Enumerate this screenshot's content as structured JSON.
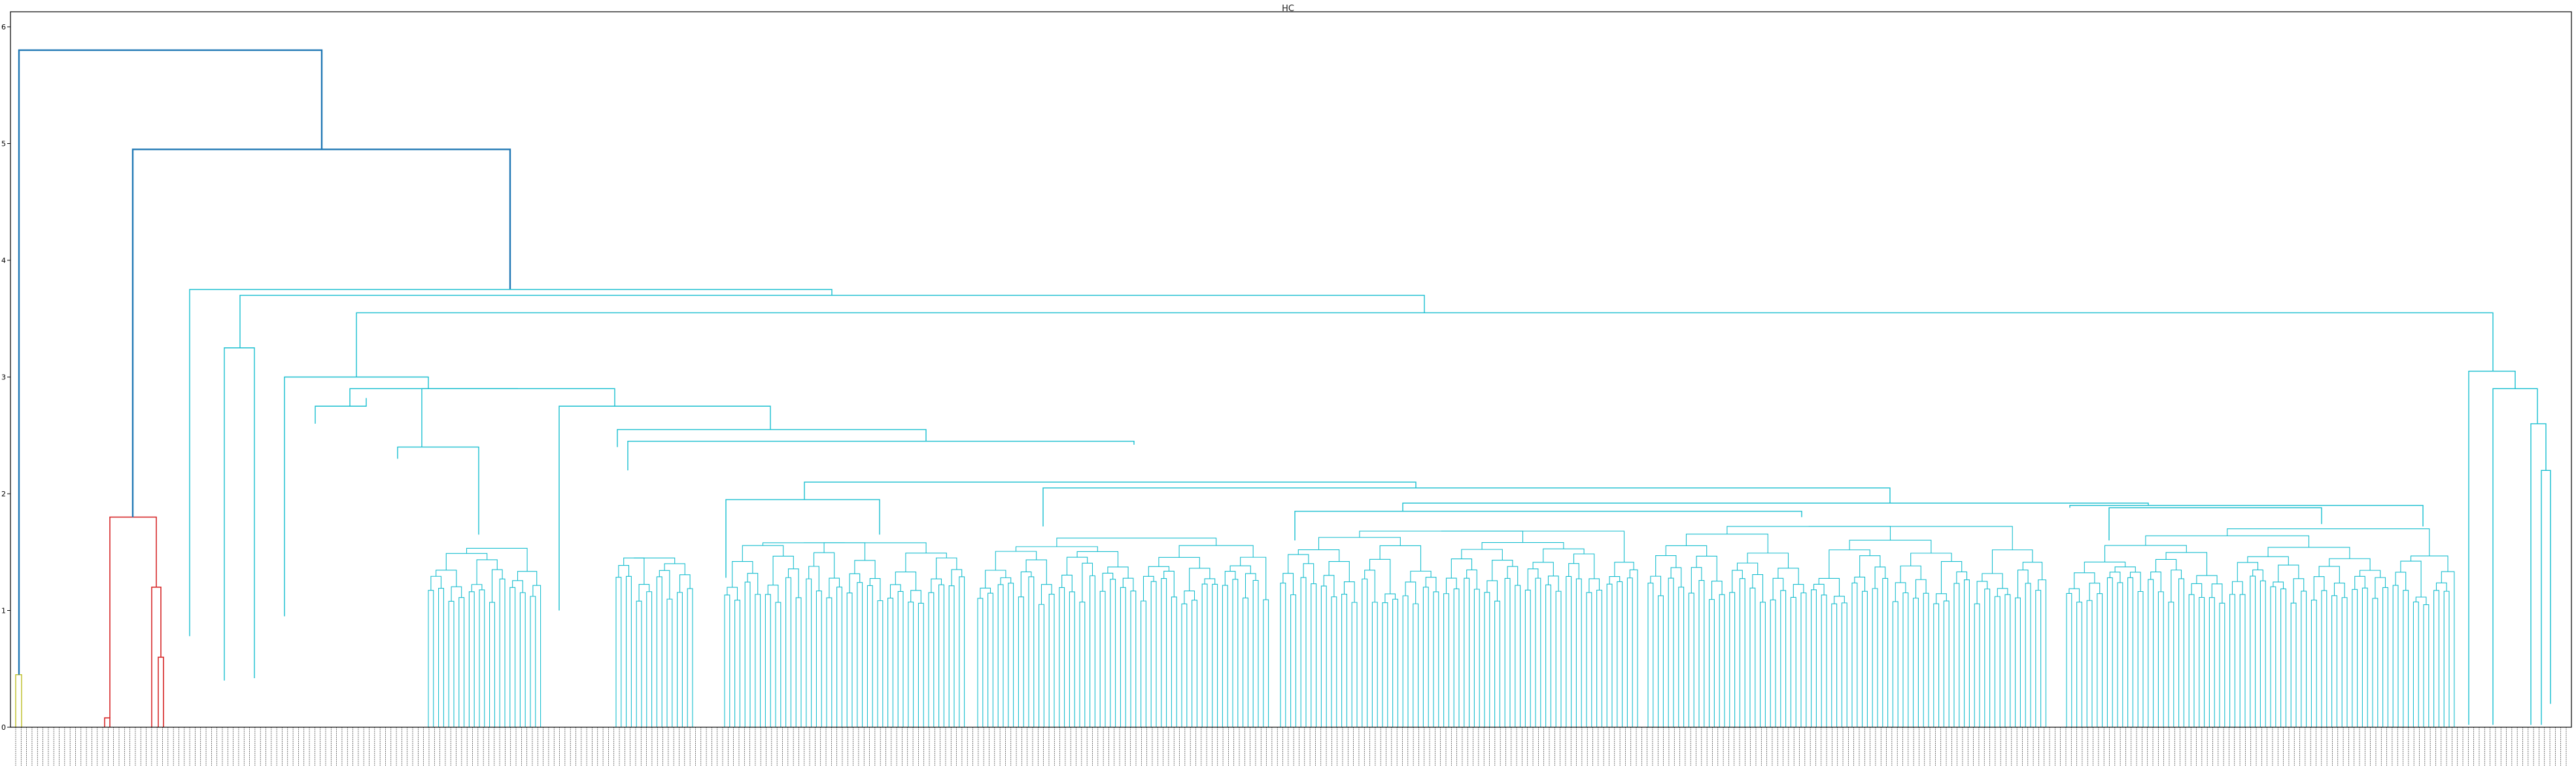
{
  "chart_data": {
    "type": "dendrogram",
    "title": "HC",
    "xlabel": "",
    "ylabel": "",
    "ylim": [
      0,
      6.1
    ],
    "yticks": [
      0,
      1,
      2,
      3,
      4,
      5,
      6
    ],
    "grid": false,
    "legend": "none",
    "leaf_label_note": "leaf labels are illegible at this resolution",
    "leaf_count_estimate": 470,
    "colors": {
      "root": "#1f77b4",
      "cluster_olive": "#bcbd22",
      "cluster_red": "#d62728",
      "cluster_cyan": "#17becf",
      "axis": "#000000"
    },
    "links": [
      {
        "name": "root",
        "height": 5.8,
        "color": "#1f77b4",
        "left": "olive-cluster",
        "right": "node-4.95"
      },
      {
        "name": "node-4.95",
        "height": 4.95,
        "color": "#1f77b4",
        "left": "red-cluster",
        "right": "cyan-cluster"
      },
      {
        "name": "olive-cluster",
        "height": 0.45,
        "color": "#bcbd22"
      },
      {
        "name": "red-cluster",
        "height": 1.8,
        "color": "#d62728"
      },
      {
        "name": "red-sub-1",
        "height": 1.2,
        "color": "#d62728"
      },
      {
        "name": "red-sub-2",
        "height": 0.6,
        "color": "#d62728"
      },
      {
        "name": "red-sub-3",
        "height": 0.08,
        "color": "#d62728"
      },
      {
        "name": "cyan-cluster",
        "height": 3.75,
        "color": "#17becf"
      },
      {
        "name": "cyan-a",
        "height": 3.7,
        "color": "#17becf"
      },
      {
        "name": "cyan-b",
        "height": 3.55,
        "color": "#17becf"
      },
      {
        "name": "cyan-right",
        "height": 3.05,
        "color": "#17becf"
      },
      {
        "name": "cyan-c",
        "height": 3.25,
        "color": "#17becf"
      },
      {
        "name": "cyan-d",
        "height": 3.0,
        "color": "#17becf"
      },
      {
        "name": "cyan-e",
        "height": 2.9,
        "color": "#17becf"
      },
      {
        "name": "cyan-f",
        "height": 2.75,
        "color": "#17becf"
      },
      {
        "name": "cyan-g",
        "height": 2.55,
        "color": "#17becf"
      },
      {
        "name": "cyan-h",
        "height": 2.45,
        "color": "#17becf"
      },
      {
        "name": "cyan-i",
        "height": 2.1,
        "color": "#17becf"
      },
      {
        "name": "cyan-j",
        "height": 2.05,
        "color": "#17becf"
      },
      {
        "name": "cyan-k",
        "height": 1.95,
        "color": "#17becf"
      }
    ]
  }
}
